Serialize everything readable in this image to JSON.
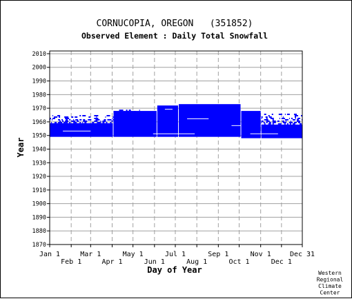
{
  "chart_data": {
    "type": "heatmap",
    "title": "CORNUCOPIA, OREGON   (351852)",
    "subtitle": "Observed Element : Daily Total Snowfall",
    "xlabel": "Day of Year",
    "ylabel": "Year",
    "xlim": [
      1,
      365
    ],
    "ylim": [
      1870,
      2012
    ],
    "x_ticks": [
      {
        "label": "Jan 1",
        "day": 1
      },
      {
        "label": "Feb 1",
        "day": 32
      },
      {
        "label": "Mar 1",
        "day": 60
      },
      {
        "label": "Apr 1",
        "day": 91
      },
      {
        "label": "May 1",
        "day": 121
      },
      {
        "label": "Jun 1",
        "day": 152
      },
      {
        "label": "Jul 1",
        "day": 182
      },
      {
        "label": "Aug 1",
        "day": 213
      },
      {
        "label": "Sep 1",
        "day": 244
      },
      {
        "label": "Oct 1",
        "day": 274
      },
      {
        "label": "Nov 1",
        "day": 305
      },
      {
        "label": "Dec 1",
        "day": 335
      },
      {
        "label": "Dec 31",
        "day": 365
      }
    ],
    "y_ticks": [
      1870,
      1880,
      1890,
      1900,
      1910,
      1920,
      1930,
      1940,
      1950,
      1960,
      1970,
      1980,
      1990,
      2000,
      2010
    ],
    "grid": true,
    "series_color": "#0000ff",
    "coverage": [
      {
        "day_start": 1,
        "day_end": 92,
        "year_start": 1949,
        "year_end": 1958
      },
      {
        "day_start": 93,
        "day_end": 155,
        "year_start": 1949,
        "year_end": 1967
      },
      {
        "day_start": 156,
        "day_end": 186,
        "year_start": 1949,
        "year_end": 1971
      },
      {
        "day_start": 187,
        "day_end": 276,
        "year_start": 1949,
        "year_end": 1972
      },
      {
        "day_start": 277,
        "day_end": 305,
        "year_start": 1948,
        "year_end": 1967
      },
      {
        "day_start": 306,
        "day_end": 365,
        "year_start": 1948,
        "year_end": 1957
      }
    ],
    "scattered_fringe": [
      {
        "day_start": 1,
        "day_end": 92,
        "year_start": 1958,
        "year_end": 1965
      },
      {
        "day_start": 93,
        "day_end": 130,
        "year_start": 1967,
        "year_end": 1969
      },
      {
        "day_start": 306,
        "day_end": 365,
        "year_start": 1957,
        "year_end": 1966
      }
    ]
  },
  "credit": [
    "Western",
    "Regional",
    "Climate",
    "Center"
  ]
}
